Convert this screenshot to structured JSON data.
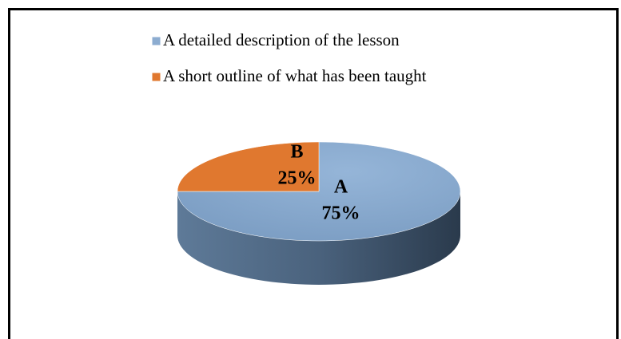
{
  "chart_data": {
    "type": "pie",
    "categories": [
      "A detailed description of the lesson",
      "A short outline of what has been taught"
    ],
    "values": [
      75,
      25
    ],
    "value_labels": [
      "75%",
      "25%"
    ],
    "point_labels": [
      "A",
      "B"
    ],
    "colors": [
      "#8cacd0",
      "#e0782f"
    ],
    "legend": "top"
  }
}
